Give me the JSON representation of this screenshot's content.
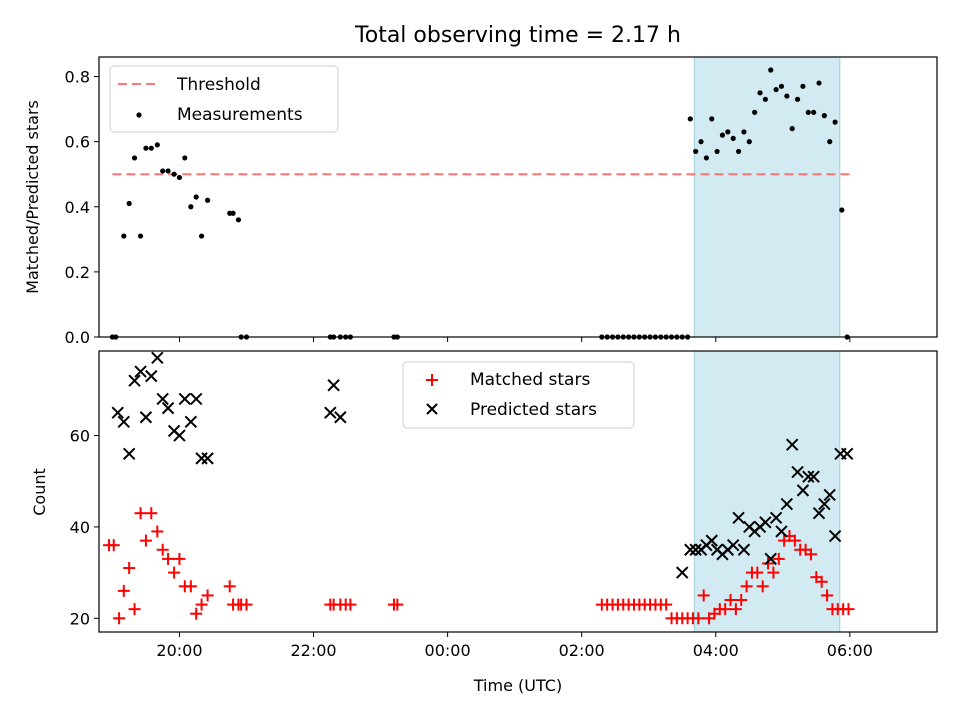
{
  "chart_data": [
    {
      "type": "scatter",
      "title": "Total observing time = 2.17 h",
      "xlabel": "",
      "ylabel": "Matched/Predicted stars",
      "xlim": [
        -5.2,
        7.3
      ],
      "ylim": [
        0,
        0.86
      ],
      "yticks": [
        0,
        0.2,
        0.4,
        0.6,
        0.8
      ],
      "ytick_labels": [
        "0.0",
        "0.2",
        "0.4",
        "0.6",
        "0.8"
      ],
      "xticks": [
        -4,
        -2,
        0,
        2,
        4,
        6
      ],
      "highlight_span": [
        3.68,
        5.85
      ],
      "threshold": {
        "label": "Threshold",
        "value": 0.5,
        "x_range": [
          -5.0,
          6.0
        ],
        "color": "#ff7373"
      },
      "series": [
        {
          "name": "Measurements",
          "color": "#000000",
          "x": [
            -5.0,
            -4.95,
            -4.83,
            -4.75,
            -4.67,
            -4.58,
            -4.5,
            -4.42,
            -4.33,
            -4.25,
            -4.17,
            -4.08,
            -4.0,
            -3.92,
            -3.83,
            -3.75,
            -3.67,
            -3.58,
            -3.25,
            -3.2,
            -3.12,
            -3.08,
            -3.0,
            -1.75,
            -1.7,
            -1.6,
            -1.52,
            -1.45,
            -0.8,
            -0.75,
            2.3,
            2.38,
            2.46,
            2.54,
            2.62,
            2.7,
            2.78,
            2.86,
            2.94,
            3.02,
            3.1,
            3.18,
            3.26,
            3.34,
            3.42,
            3.5,
            3.58,
            3.62,
            3.7,
            3.78,
            3.86,
            3.94,
            4.02,
            4.1,
            4.18,
            4.26,
            4.34,
            4.42,
            4.5,
            4.58,
            4.66,
            4.74,
            4.82,
            4.9,
            4.98,
            5.06,
            5.14,
            5.22,
            5.3,
            5.38,
            5.46,
            5.54,
            5.62,
            5.7,
            5.78,
            5.88,
            5.96
          ],
          "y": [
            0,
            0,
            0.31,
            0.41,
            0.55,
            0.31,
            0.58,
            0.58,
            0.59,
            0.51,
            0.51,
            0.5,
            0.49,
            0.55,
            0.4,
            0.43,
            0.31,
            0.42,
            0.38,
            0.38,
            0.36,
            0,
            0,
            0,
            0,
            0,
            0,
            0,
            0,
            0,
            0,
            0,
            0,
            0,
            0,
            0,
            0,
            0,
            0,
            0,
            0,
            0,
            0,
            0,
            0,
            0,
            0,
            0.67,
            0.57,
            0.6,
            0.55,
            0.67,
            0.57,
            0.62,
            0.63,
            0.61,
            0.57,
            0.63,
            0.6,
            0.69,
            0.75,
            0.73,
            0.82,
            0.76,
            0.77,
            0.74,
            0.64,
            0.73,
            0.77,
            0.69,
            0.69,
            0.78,
            0.68,
            0.6,
            0.66,
            0.39,
            0
          ]
        }
      ],
      "legend": {
        "placement": "upper left"
      }
    },
    {
      "type": "scatter",
      "title": "",
      "xlabel": "Time (UTC)",
      "ylabel": "Count",
      "xlim": [
        -5.2,
        7.3
      ],
      "ylim": [
        17,
        78.5
      ],
      "yticks": [
        20,
        40,
        60
      ],
      "ytick_labels": [
        "20",
        "40",
        "60"
      ],
      "xticks": [
        -4,
        -2,
        0,
        2,
        4,
        6
      ],
      "xtick_labels": [
        "20:00",
        "22:00",
        "00:00",
        "02:00",
        "04:00",
        "06:00"
      ],
      "highlight_span": [
        3.68,
        5.85
      ],
      "series": [
        {
          "name": "Matched stars",
          "color": "#ff0000",
          "marker": "plus",
          "x": [
            -5.05,
            -4.98,
            -4.9,
            -4.83,
            -4.75,
            -4.67,
            -4.58,
            -4.5,
            -4.42,
            -4.33,
            -4.25,
            -4.17,
            -4.08,
            -4.0,
            -3.92,
            -3.83,
            -3.75,
            -3.67,
            -3.58,
            -3.25,
            -3.2,
            -3.12,
            -3.08,
            -3.0,
            -1.75,
            -1.7,
            -1.6,
            -1.52,
            -1.45,
            -0.8,
            -0.75,
            2.3,
            2.38,
            2.46,
            2.54,
            2.62,
            2.7,
            2.78,
            2.86,
            2.94,
            3.02,
            3.1,
            3.18,
            3.26,
            3.34,
            3.42,
            3.5,
            3.58,
            3.66,
            3.74,
            3.82,
            3.9,
            3.98,
            4.06,
            4.14,
            4.22,
            4.3,
            4.38,
            4.46,
            4.54,
            4.62,
            4.7,
            4.78,
            4.86,
            4.94,
            5.02,
            5.1,
            5.18,
            5.26,
            5.34,
            5.42,
            5.5,
            5.58,
            5.66,
            5.74,
            5.82,
            5.9,
            5.98
          ],
          "y": [
            36,
            36,
            20,
            26,
            31,
            22,
            43,
            37,
            43,
            39,
            35,
            33,
            30,
            33,
            27,
            27,
            21,
            23,
            25,
            27,
            23,
            23,
            23,
            23,
            23,
            23,
            23,
            23,
            23,
            23,
            23,
            23,
            23,
            23,
            23,
            23,
            23,
            23,
            23,
            23,
            23,
            23,
            23,
            23,
            20,
            20,
            20,
            20,
            20,
            20,
            25,
            20,
            21,
            22,
            22,
            24,
            22,
            24,
            27,
            30,
            30,
            27,
            32,
            30,
            33,
            37,
            38,
            37,
            35,
            35,
            34,
            29,
            28,
            25,
            22,
            22,
            22,
            22
          ]
        },
        {
          "name": "Predicted stars",
          "color": "#000000",
          "marker": "x",
          "x": [
            -4.92,
            -4.83,
            -4.75,
            -4.67,
            -4.58,
            -4.5,
            -4.42,
            -4.33,
            -4.25,
            -4.17,
            -4.08,
            -4.0,
            -3.92,
            -3.83,
            -3.75,
            -3.67,
            -3.58,
            -1.75,
            -1.7,
            -1.6,
            3.5,
            3.62,
            3.7,
            3.78,
            3.86,
            3.94,
            4.02,
            4.1,
            4.18,
            4.26,
            4.34,
            4.42,
            4.5,
            4.58,
            4.66,
            4.74,
            4.82,
            4.9,
            4.98,
            5.06,
            5.14,
            5.22,
            5.3,
            5.38,
            5.46,
            5.54,
            5.62,
            5.7,
            5.78,
            5.86,
            5.96
          ],
          "y": [
            65,
            63,
            56,
            72,
            74,
            64,
            73,
            77,
            68,
            66,
            61,
            60,
            68,
            63,
            68,
            55,
            55,
            65,
            71,
            64,
            30,
            35,
            35,
            35,
            36,
            37,
            35,
            34,
            35,
            36,
            42,
            35,
            40,
            39,
            40,
            41,
            33,
            42,
            39,
            45,
            58,
            52,
            48,
            51,
            51,
            43,
            45,
            47,
            38,
            56,
            56
          ]
        }
      ],
      "legend": {
        "placement": "upper center"
      }
    }
  ]
}
